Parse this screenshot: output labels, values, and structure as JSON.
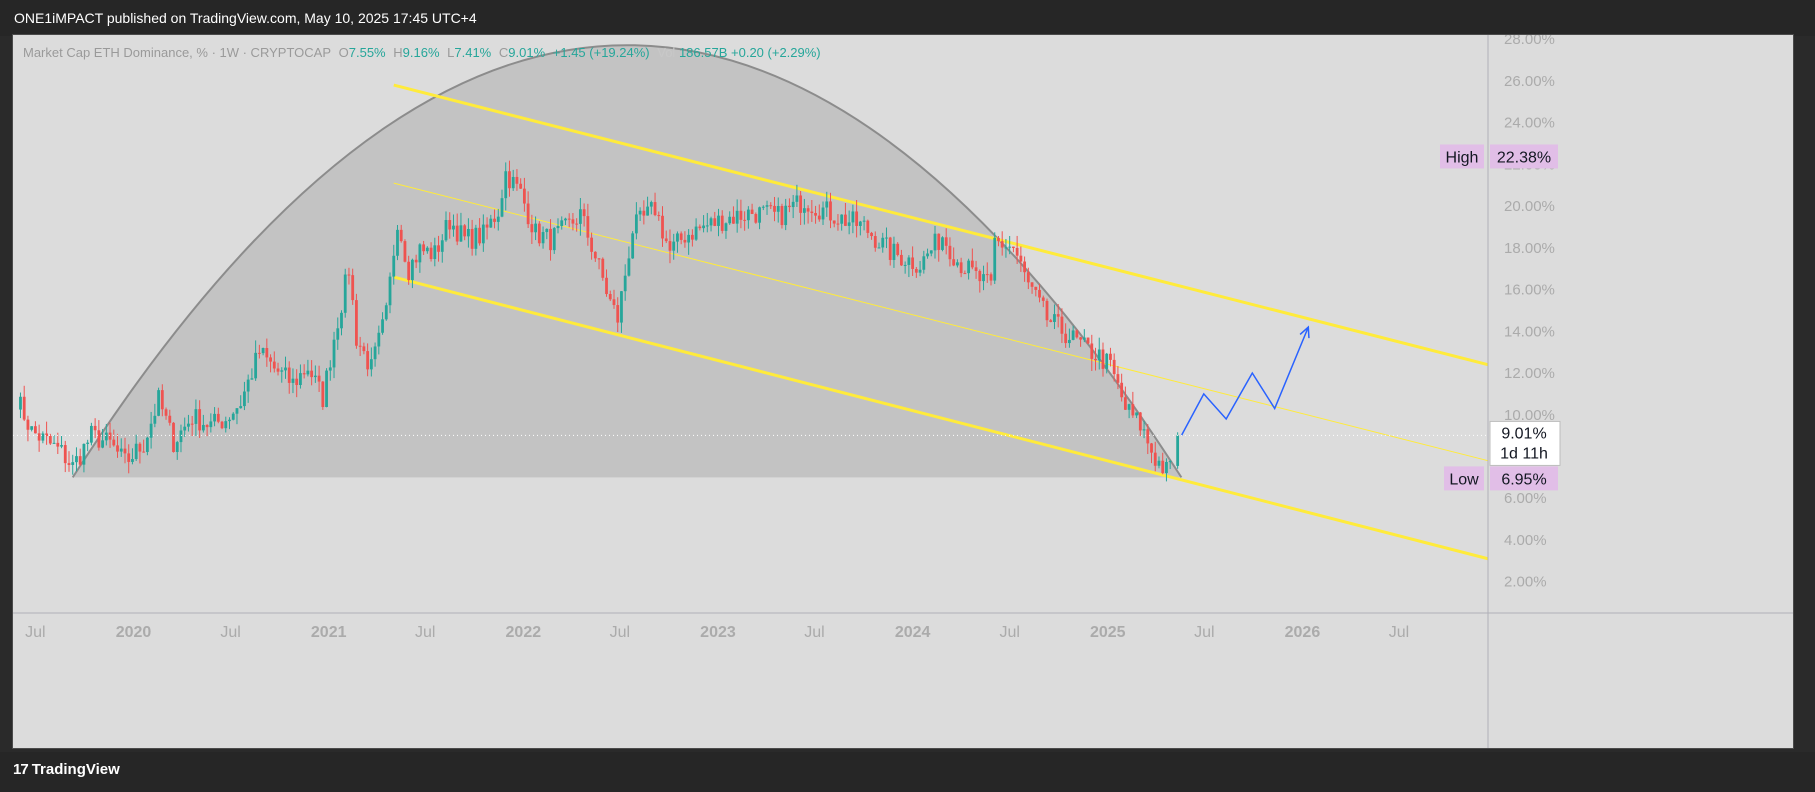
{
  "header": {
    "publisher_text": "ONE1iMPACT published on TradingView.com, May 10, 2025 17:45 UTC+4"
  },
  "legend": {
    "symbol": "Market Cap ETH Dominance, % · 1W · CRYPTOCAP",
    "open_label": "O",
    "open": "7.55%",
    "high_label": "H",
    "high": "9.16%",
    "low_label": "L",
    "low": "7.41%",
    "close_label": "C",
    "close": "9.01%",
    "change": "+1.45 (+19.24%)",
    "vol_label": "Vol",
    "volume": "186.57B",
    "vol_change": "+0.20 (+2.29%)"
  },
  "footer": {
    "brand": "TradingView",
    "logo_icon": "tradingview-logo-icon"
  },
  "colors": {
    "up": "#26a69a",
    "down": "#ef5350",
    "channel": "#ffeb3b",
    "arc_fill": "#c3c3c3",
    "arc_stroke": "#8c8c8c",
    "projection": "#2962ff",
    "badge": "#e1bee7",
    "background": "#dcdcdc"
  },
  "chart_data": {
    "type": "candlestick",
    "interval": "1W",
    "y_unit": "%",
    "ylim": [
      0.5,
      28.2
    ],
    "x_range": [
      "2019-05-20",
      "2026-12-15"
    ],
    "y_ticks": [
      "2.00%",
      "4.00%",
      "6.00%",
      "8.00%",
      "10.00%",
      "12.00%",
      "14.00%",
      "16.00%",
      "18.00%",
      "20.00%",
      "22.00%",
      "24.00%",
      "26.00%",
      "28.00%"
    ],
    "x_ticks": [
      {
        "label": "Jul",
        "date": "2019-07-01",
        "year": false
      },
      {
        "label": "2020",
        "date": "2020-01-01",
        "year": true
      },
      {
        "label": "Jul",
        "date": "2020-07-01",
        "year": false
      },
      {
        "label": "2021",
        "date": "2021-01-01",
        "year": true
      },
      {
        "label": "Jul",
        "date": "2021-07-01",
        "year": false
      },
      {
        "label": "2022",
        "date": "2022-01-01",
        "year": true
      },
      {
        "label": "Jul",
        "date": "2022-07-01",
        "year": false
      },
      {
        "label": "2023",
        "date": "2023-01-01",
        "year": true
      },
      {
        "label": "Jul",
        "date": "2023-07-01",
        "year": false
      },
      {
        "label": "2024",
        "date": "2024-01-01",
        "year": true
      },
      {
        "label": "Jul",
        "date": "2024-07-01",
        "year": false
      },
      {
        "label": "2025",
        "date": "2025-01-01",
        "year": true
      },
      {
        "label": "Jul",
        "date": "2025-07-01",
        "year": false
      },
      {
        "label": "2026",
        "date": "2026-01-01",
        "year": true
      },
      {
        "label": "Jul",
        "date": "2026-07-01",
        "year": false
      }
    ],
    "anchors": [
      [
        "2019-05-27",
        10.8
      ],
      [
        "2019-06-24",
        9.2
      ],
      [
        "2019-08-19",
        8.2
      ],
      [
        "2019-09-09",
        7.5
      ],
      [
        "2019-10-14",
        9.0
      ],
      [
        "2019-11-18",
        8.6
      ],
      [
        "2019-12-16",
        7.7
      ],
      [
        "2020-01-20",
        8.6
      ],
      [
        "2020-02-17",
        10.7
      ],
      [
        "2020-03-16",
        8.7
      ],
      [
        "2020-04-20",
        9.9
      ],
      [
        "2020-05-25",
        9.5
      ],
      [
        "2020-06-22",
        9.8
      ],
      [
        "2020-07-20",
        10.6
      ],
      [
        "2020-08-24",
        13.0
      ],
      [
        "2020-09-21",
        12.2
      ],
      [
        "2020-10-26",
        11.5
      ],
      [
        "2020-11-23",
        12.3
      ],
      [
        "2020-12-21",
        10.8
      ],
      [
        "2021-01-11",
        13.7
      ],
      [
        "2021-02-08",
        17.0
      ],
      [
        "2021-02-22",
        13.7
      ],
      [
        "2021-03-22",
        12.2
      ],
      [
        "2021-04-19",
        14.8
      ],
      [
        "2021-05-10",
        19.4
      ],
      [
        "2021-05-31",
        17.0
      ],
      [
        "2021-06-21",
        17.9
      ],
      [
        "2021-07-19",
        17.7
      ],
      [
        "2021-08-16",
        19.3
      ],
      [
        "2021-09-13",
        18.4
      ],
      [
        "2021-10-18",
        18.6
      ],
      [
        "2021-11-15",
        19.8
      ],
      [
        "2021-11-29",
        21.6
      ],
      [
        "2021-12-27",
        20.6
      ],
      [
        "2022-01-24",
        18.7
      ],
      [
        "2022-02-21",
        18.4
      ],
      [
        "2022-03-21",
        18.9
      ],
      [
        "2022-04-18",
        19.6
      ],
      [
        "2022-05-16",
        17.6
      ],
      [
        "2022-06-13",
        15.4
      ],
      [
        "2022-06-27",
        14.6
      ],
      [
        "2022-07-25",
        18.9
      ],
      [
        "2022-09-05",
        19.9
      ],
      [
        "2022-10-03",
        17.8
      ],
      [
        "2022-10-31",
        18.6
      ],
      [
        "2022-12-05",
        19.0
      ],
      [
        "2023-01-16",
        19.4
      ],
      [
        "2023-03-06",
        19.7
      ],
      [
        "2023-04-24",
        19.5
      ],
      [
        "2023-06-12",
        20.3
      ],
      [
        "2023-07-10",
        19.9
      ],
      [
        "2023-08-21",
        19.4
      ],
      [
        "2023-10-02",
        19.0
      ],
      [
        "2023-11-20",
        17.8
      ],
      [
        "2024-01-15",
        17.2
      ],
      [
        "2024-02-26",
        18.6
      ],
      [
        "2024-03-25",
        17.4
      ],
      [
        "2024-04-29",
        16.6
      ],
      [
        "2024-05-27",
        16.1
      ],
      [
        "2024-06-03",
        18.3
      ],
      [
        "2024-07-08",
        18.0
      ],
      [
        "2024-08-05",
        16.2
      ],
      [
        "2024-09-09",
        14.6
      ],
      [
        "2024-10-14",
        13.9
      ],
      [
        "2024-11-18",
        13.2
      ],
      [
        "2024-12-16",
        12.8
      ],
      [
        "2025-01-06",
        12.3
      ],
      [
        "2025-02-03",
        10.3
      ],
      [
        "2025-03-03",
        9.5
      ],
      [
        "2025-03-31",
        7.9
      ],
      [
        "2025-04-21",
        7.3
      ],
      [
        "2025-05-05",
        7.55
      ]
    ],
    "last_bar": {
      "date": "2025-05-12",
      "open": 7.55,
      "high": 9.16,
      "low": 7.41,
      "close": 9.01
    },
    "price_line": 9.01,
    "last_price_label": "9.01%",
    "countdown": "1d 11h",
    "high_label": "High",
    "high_value": "22.38%",
    "high_y": 22.38,
    "low_label": "Low",
    "low_value": "6.95%",
    "low_y": 6.95,
    "channel": {
      "upper": [
        [
          "2021-05-03",
          25.8
        ],
        [
          "2026-12-15",
          12.4
        ]
      ],
      "middle": [
        [
          "2021-05-03",
          21.1
        ],
        [
          "2026-12-15",
          7.8
        ]
      ],
      "lower": [
        [
          "2021-05-03",
          16.6
        ],
        [
          "2026-12-15",
          3.1
        ]
      ]
    },
    "arc": {
      "points": [
        [
          "2019-09-09",
          7.0
        ],
        [
          "2022-06-20",
          27.7
        ],
        [
          "2025-05-19",
          7.2
        ]
      ],
      "base": 7.0
    },
    "projection": [
      [
        "2025-05-19",
        9.0
      ],
      [
        "2025-06-30",
        11.0
      ],
      [
        "2025-08-11",
        9.8
      ],
      [
        "2025-09-29",
        12.0
      ],
      [
        "2025-11-10",
        10.3
      ],
      [
        "2026-01-12",
        14.2
      ]
    ]
  }
}
